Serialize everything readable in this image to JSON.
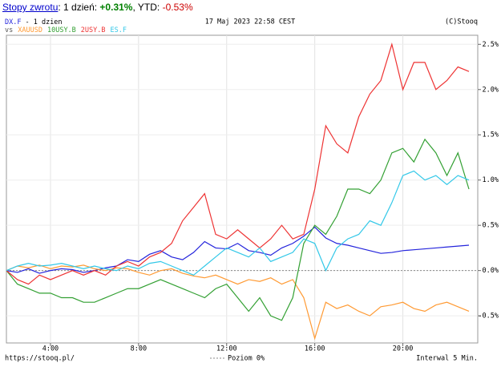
{
  "header": {
    "link": "Stopy zwrotu",
    "text1": ": 1 dzień:",
    "day": "+0.31%",
    "text2": ", YTD:",
    "ytd": "-0.53%"
  },
  "chart_data": {
    "type": "line",
    "subtitle": "- 1 dzien",
    "legend_prefix": "vs",
    "date": "17 Maj 2023 22:58 CEST",
    "copyright": "(C)Stooq",
    "source": "https://stooq.pl/",
    "zero_label": "Poziom 0%",
    "zero_level": 0,
    "interval": "Interwal 5 Min.",
    "grid": true,
    "xlim": [
      2,
      23.4
    ],
    "ylim": [
      -0.8,
      2.6
    ],
    "xticks": [
      {
        "value": 4,
        "label": "4:00"
      },
      {
        "value": 8,
        "label": "8:00"
      },
      {
        "value": 12,
        "label": "12:00"
      },
      {
        "value": 16,
        "label": "16:00"
      },
      {
        "value": 20,
        "label": "20:00"
      }
    ],
    "yticks": [
      {
        "value": -0.5,
        "label": "-0.5%"
      },
      {
        "value": 0,
        "label": "0.0%"
      },
      {
        "value": 0.5,
        "label": "0.5%"
      },
      {
        "value": 1,
        "label": "1.0%"
      },
      {
        "value": 1.5,
        "label": "1.5%"
      },
      {
        "value": 2,
        "label": "2.0%"
      },
      {
        "value": 2.5,
        "label": "2.5%"
      }
    ],
    "x": [
      2,
      2.5,
      3,
      3.5,
      4,
      4.5,
      5,
      5.5,
      6,
      6.5,
      7,
      7.5,
      8,
      8.5,
      9,
      9.5,
      10,
      10.5,
      11,
      11.5,
      12,
      12.5,
      13,
      13.5,
      14,
      14.5,
      15,
      15.5,
      16,
      16.5,
      17,
      17.5,
      18,
      18.5,
      19,
      19.5,
      20,
      20.5,
      21,
      21.5,
      22,
      22.5,
      23
    ],
    "series": [
      {
        "name": "DX.F",
        "color": "#2424dc",
        "values": [
          0,
          -0.02,
          0.02,
          -0.03,
          0,
          0.02,
          0.01,
          -0.02,
          0,
          0.03,
          0.05,
          0.12,
          0.1,
          0.18,
          0.22,
          0.15,
          0.12,
          0.2,
          0.32,
          0.25,
          0.24,
          0.3,
          0.22,
          0.2,
          0.17,
          0.25,
          0.3,
          0.38,
          0.48,
          0.36,
          0.3,
          0.28,
          0.25,
          0.22,
          0.19,
          0.2,
          0.22,
          0.23,
          0.24,
          0.25,
          0.26,
          0.27,
          0.28
        ]
      },
      {
        "name": "XAUUSD",
        "color": "#ff9a33",
        "values": [
          0,
          0.05,
          0.03,
          0.06,
          0.02,
          0.05,
          0.04,
          0.06,
          0.02,
          0,
          0.03,
          0.02,
          -0.02,
          -0.05,
          0,
          0.02,
          -0.03,
          -0.06,
          -0.08,
          -0.05,
          -0.1,
          -0.15,
          -0.1,
          -0.12,
          -0.08,
          -0.15,
          -0.1,
          -0.3,
          -0.75,
          -0.35,
          -0.42,
          -0.38,
          -0.45,
          -0.5,
          -0.4,
          -0.38,
          -0.35,
          -0.42,
          -0.45,
          -0.38,
          -0.35,
          -0.4,
          -0.45
        ]
      },
      {
        "name": "10USY.B",
        "color": "#33a033",
        "values": [
          0,
          -0.15,
          -0.2,
          -0.25,
          -0.25,
          -0.3,
          -0.3,
          -0.35,
          -0.35,
          -0.3,
          -0.25,
          -0.2,
          -0.2,
          -0.15,
          -0.1,
          -0.15,
          -0.2,
          -0.25,
          -0.3,
          -0.2,
          -0.15,
          -0.3,
          -0.45,
          -0.3,
          -0.5,
          -0.55,
          -0.3,
          0.3,
          0.5,
          0.4,
          0.6,
          0.9,
          0.9,
          0.85,
          1,
          1.3,
          1.35,
          1.2,
          1.45,
          1.3,
          1.05,
          1.3,
          0.9
        ]
      },
      {
        "name": "2USY.B",
        "color": "#ee3333",
        "values": [
          0,
          -0.1,
          -0.15,
          -0.05,
          -0.1,
          -0.05,
          0,
          -0.05,
          0,
          -0.05,
          0.05,
          0.1,
          0.05,
          0.15,
          0.2,
          0.3,
          0.55,
          0.7,
          0.85,
          0.4,
          0.35,
          0.45,
          0.35,
          0.25,
          0.35,
          0.5,
          0.35,
          0.4,
          0.9,
          1.6,
          1.4,
          1.3,
          1.7,
          1.95,
          2.1,
          2.5,
          2,
          2.3,
          2.3,
          2,
          2.1,
          2.25,
          2.2
        ]
      },
      {
        "name": "ES.F",
        "color": "#33c8e8",
        "values": [
          0,
          0.05,
          0.08,
          0.05,
          0.06,
          0.08,
          0.05,
          0.02,
          0.05,
          0.02,
          0,
          0.05,
          0.02,
          0.08,
          0.1,
          0.05,
          0,
          -0.05,
          0.05,
          0.15,
          0.25,
          0.2,
          0.15,
          0.25,
          0.1,
          0.15,
          0.2,
          0.35,
          0.3,
          0,
          0.25,
          0.35,
          0.4,
          0.55,
          0.5,
          0.75,
          1.05,
          1.1,
          1,
          1.05,
          0.95,
          1.05,
          1
        ]
      }
    ]
  }
}
